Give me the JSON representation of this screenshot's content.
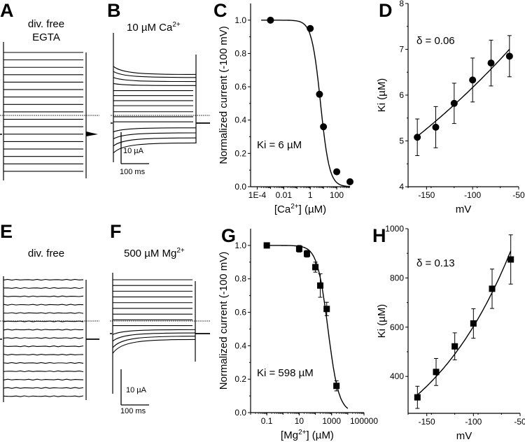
{
  "panels": {
    "A": {
      "label": "A",
      "title_lines": [
        "div. free",
        "EGTA"
      ]
    },
    "B": {
      "label": "B",
      "title": "10 µM Ca",
      "title_sup": "2+",
      "scale_current": "10 µA",
      "scale_time": "100 ms"
    },
    "E": {
      "label": "E",
      "title": "div. free"
    },
    "F": {
      "label": "F",
      "title": "500 µM Mg",
      "title_sup": "2+",
      "scale_current": "10 µA",
      "scale_time": "100 ms"
    }
  },
  "chart_data": [
    {
      "id": "C",
      "panel_label": "C",
      "type": "scatter",
      "xscale": "log",
      "xlabel_pre": "[Ca",
      "xlabel_sup": "2+",
      "xlabel_post": "] (µM)",
      "ylabel": "Normalized current (-100 mV)",
      "xticks": [
        {
          "v": 0.0001,
          "label": "1E-4"
        },
        {
          "v": 0.01,
          "label": "0.01"
        },
        {
          "v": 1,
          "label": "1"
        },
        {
          "v": 100,
          "label": "100"
        }
      ],
      "yticks": [
        {
          "v": 0.0,
          "label": "0.0"
        },
        {
          "v": 0.2,
          "label": "0.2"
        },
        {
          "v": 0.4,
          "label": "0.4"
        },
        {
          "v": 0.6,
          "label": "0.6"
        },
        {
          "v": 0.8,
          "label": "0.8"
        },
        {
          "v": 1.0,
          "label": "1.0"
        }
      ],
      "xlim_log10": [
        -4.5,
        3.0
      ],
      "ylim": [
        0,
        1.1
      ],
      "marker": "circle",
      "points": [
        {
          "x": 0.001,
          "y": 1.0
        },
        {
          "x": 1,
          "y": 0.95
        },
        {
          "x": 5,
          "y": 0.555
        },
        {
          "x": 10,
          "y": 0.36
        },
        {
          "x": 100,
          "y": 0.09
        },
        {
          "x": 1000,
          "y": 0.03
        }
      ],
      "fit": {
        "model": "hill",
        "ki": 6,
        "n": 1.3
      },
      "annotation": "Ki = 6 µM"
    },
    {
      "id": "D",
      "panel_label": "D",
      "type": "scatter",
      "xlabel": "mV",
      "ylabel": "Ki (µM)",
      "xticks": [
        {
          "v": -150,
          "label": "-150"
        },
        {
          "v": -100,
          "label": "-100"
        },
        {
          "v": -50,
          "label": "-50"
        }
      ],
      "yticks": [
        {
          "v": 4,
          "label": "4"
        },
        {
          "v": 5,
          "label": "5"
        },
        {
          "v": 6,
          "label": "6"
        },
        {
          "v": 7,
          "label": "7"
        },
        {
          "v": 8,
          "label": "8"
        }
      ],
      "xlim": [
        -170,
        -50
      ],
      "ylim": [
        4,
        8
      ],
      "marker": "circle",
      "points": [
        {
          "x": -160,
          "y": 5.08,
          "err": 0.4
        },
        {
          "x": -140,
          "y": 5.3,
          "err": 0.45
        },
        {
          "x": -120,
          "y": 5.82,
          "err": 0.44
        },
        {
          "x": -100,
          "y": 6.33,
          "err": 0.48
        },
        {
          "x": -80,
          "y": 6.7,
          "err": 0.5
        },
        {
          "x": -60,
          "y": 6.85,
          "err": 0.45
        }
      ],
      "fit": {
        "model": "woodhull",
        "k0": 7.0,
        "delta": 0.06,
        "x_from": -160,
        "x_to": -60,
        "y_from": 5.1,
        "y_to": 7.0
      },
      "annotation": "δ = 0.06"
    },
    {
      "id": "G",
      "panel_label": "G",
      "type": "scatter",
      "xscale": "log",
      "xlabel_pre": "[Mg",
      "xlabel_sup": "2+",
      "xlabel_post": "] (µM)",
      "ylabel": "Normalized current (-100 mV)",
      "xticks": [
        {
          "v": 0.1,
          "label": "0.1"
        },
        {
          "v": 10,
          "label": "10"
        },
        {
          "v": 1000,
          "label": "1000"
        },
        {
          "v": 100000,
          "label": "100000"
        }
      ],
      "yticks": [
        {
          "v": 0.0,
          "label": "0.0"
        },
        {
          "v": 0.2,
          "label": "0.2"
        },
        {
          "v": 0.4,
          "label": "0.4"
        },
        {
          "v": 0.6,
          "label": "0.6"
        },
        {
          "v": 0.8,
          "label": "0.8"
        },
        {
          "v": 1.0,
          "label": "1.0"
        }
      ],
      "xlim_log10": [
        -2.0,
        5.0
      ],
      "ylim": [
        0,
        1.1
      ],
      "marker": "square",
      "points": [
        {
          "x": 0.1,
          "y": 1.0,
          "err": 0.01
        },
        {
          "x": 10,
          "y": 0.98,
          "err": 0.02
        },
        {
          "x": 30,
          "y": 0.95,
          "err": 0.02
        },
        {
          "x": 100,
          "y": 0.87,
          "err": 0.03
        },
        {
          "x": 200,
          "y": 0.76,
          "err": 0.07
        },
        {
          "x": 500,
          "y": 0.62,
          "err": 0.04
        },
        {
          "x": 2000,
          "y": 0.16,
          "err": 0.03
        }
      ],
      "fit": {
        "model": "hill",
        "ki": 598,
        "n": 1.3,
        "x_max": 10000
      },
      "annotation": "Ki = 598 µM"
    },
    {
      "id": "H",
      "panel_label": "H",
      "type": "scatter",
      "xlabel": "mV",
      "ylabel": "Ki (µM)",
      "xticks": [
        {
          "v": -150,
          "label": "-150"
        },
        {
          "v": -100,
          "label": "-100"
        },
        {
          "v": -50,
          "label": "-50"
        }
      ],
      "yticks": [
        {
          "v": 400,
          "label": "400"
        },
        {
          "v": 600,
          "label": "600"
        },
        {
          "v": 800,
          "label": "800"
        },
        {
          "v": 1000,
          "label": "1000"
        }
      ],
      "xlim": [
        -170,
        -50
      ],
      "ylim": [
        250,
        1000
      ],
      "marker": "square",
      "points": [
        {
          "x": -160,
          "y": 315,
          "err": 45
        },
        {
          "x": -140,
          "y": 418,
          "err": 55
        },
        {
          "x": -120,
          "y": 522,
          "err": 55
        },
        {
          "x": -100,
          "y": 615,
          "err": 60
        },
        {
          "x": -80,
          "y": 756,
          "err": 80
        },
        {
          "x": -60,
          "y": 875,
          "err": 100
        }
      ],
      "fit": {
        "model": "woodhull",
        "x_from": -160,
        "x_to": -60,
        "y_from": 325,
        "y_to": 910
      },
      "annotation": "δ = 0.13"
    }
  ],
  "traces": {
    "A": {
      "levels": [
        0.0,
        0.06,
        0.12,
        0.18,
        0.24,
        0.3,
        0.36,
        0.42,
        0.48,
        0.54,
        0.6,
        0.66,
        0.72,
        0.78,
        0.84,
        0.9,
        0.96
      ],
      "decay": [
        0,
        0,
        0,
        0,
        0,
        0,
        0,
        0,
        0,
        0,
        0,
        0,
        0,
        0,
        0,
        0,
        0
      ]
    },
    "B": {
      "levels": [
        0.17,
        0.2,
        0.24,
        0.28,
        0.33,
        0.38,
        0.43,
        0.48,
        0.54,
        0.59,
        0.64,
        0.7,
        0.75,
        0.8,
        0.85
      ],
      "decay": [
        0.08,
        0.06,
        0.04,
        0.02,
        0,
        0,
        0,
        0,
        0,
        0,
        0,
        -0.04,
        -0.06,
        -0.08,
        -0.1
      ]
    },
    "E": {
      "levels": [
        0.0,
        0.07,
        0.14,
        0.21,
        0.28,
        0.35,
        0.42,
        0.49,
        0.56,
        0.63,
        0.7,
        0.77,
        0.84,
        0.91,
        0.98
      ]
    },
    "F": {
      "levels": [
        0.0,
        0.07,
        0.14,
        0.21,
        0.28,
        0.35,
        0.42,
        0.49,
        0.56,
        0.61,
        0.65,
        0.69,
        0.73
      ],
      "decay": [
        0,
        0,
        0,
        0,
        0,
        0,
        0,
        0,
        0,
        -0.06,
        -0.1,
        -0.14,
        -0.17
      ]
    }
  }
}
